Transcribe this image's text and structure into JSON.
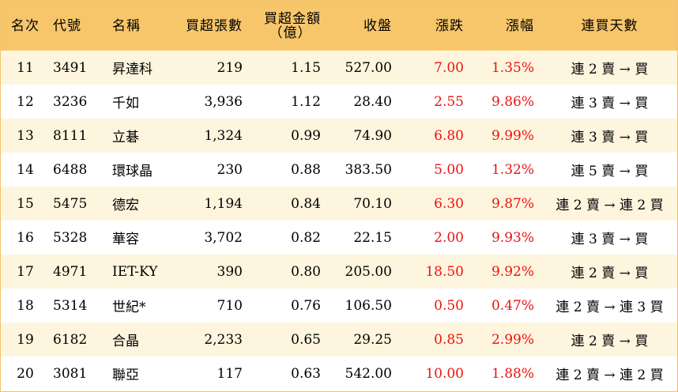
{
  "header": {
    "rank": "名次",
    "code": "代號",
    "name": "名稱",
    "net_buy_lots": "買超張數",
    "net_buy_amount_line1": "買超金額",
    "net_buy_amount_line2": "（億）",
    "close": "收盤",
    "change": "漲跌",
    "change_pct": "漲幅",
    "streak": "連買天數"
  },
  "colors": {
    "header_bg": "#f7c66b",
    "stripe_bg": "#fef5de",
    "up_red": "#ee1111",
    "border": "#f2c36b"
  },
  "rows": [
    {
      "rank": "11",
      "code": "3491",
      "name": "昇達科",
      "lots": "219",
      "amount": "1.15",
      "close": "527.00",
      "change": "7.00",
      "pct": "1.35%",
      "streak": "連 2 賣 → 買"
    },
    {
      "rank": "12",
      "code": "3236",
      "name": "千如",
      "lots": "3,936",
      "amount": "1.12",
      "close": "28.40",
      "change": "2.55",
      "pct": "9.86%",
      "streak": "連 3 賣 → 買"
    },
    {
      "rank": "13",
      "code": "8111",
      "name": "立碁",
      "lots": "1,324",
      "amount": "0.99",
      "close": "74.90",
      "change": "6.80",
      "pct": "9.99%",
      "streak": "連 3 賣 → 買"
    },
    {
      "rank": "14",
      "code": "6488",
      "name": "環球晶",
      "lots": "230",
      "amount": "0.88",
      "close": "383.50",
      "change": "5.00",
      "pct": "1.32%",
      "streak": "連 5 賣 → 買"
    },
    {
      "rank": "15",
      "code": "5475",
      "name": "德宏",
      "lots": "1,194",
      "amount": "0.84",
      "close": "70.10",
      "change": "6.30",
      "pct": "9.87%",
      "streak": "連 2 賣 → 連 2 買"
    },
    {
      "rank": "16",
      "code": "5328",
      "name": "華容",
      "lots": "3,702",
      "amount": "0.82",
      "close": "22.15",
      "change": "2.00",
      "pct": "9.93%",
      "streak": "連 3 賣 → 買"
    },
    {
      "rank": "17",
      "code": "4971",
      "name": "IET-KY",
      "lots": "390",
      "amount": "0.80",
      "close": "205.00",
      "change": "18.50",
      "pct": "9.92%",
      "streak": "連 2 賣 → 買"
    },
    {
      "rank": "18",
      "code": "5314",
      "name": "世紀*",
      "lots": "710",
      "amount": "0.76",
      "close": "106.50",
      "change": "0.50",
      "pct": "0.47%",
      "streak": "連 2 賣 → 連 3 買"
    },
    {
      "rank": "19",
      "code": "6182",
      "name": "合晶",
      "lots": "2,233",
      "amount": "0.65",
      "close": "29.25",
      "change": "0.85",
      "pct": "2.99%",
      "streak": "連 2 賣 → 買"
    },
    {
      "rank": "20",
      "code": "3081",
      "name": "聯亞",
      "lots": "117",
      "amount": "0.63",
      "close": "542.00",
      "change": "10.00",
      "pct": "1.88%",
      "streak": "連 2 賣 → 連 2 買"
    }
  ]
}
